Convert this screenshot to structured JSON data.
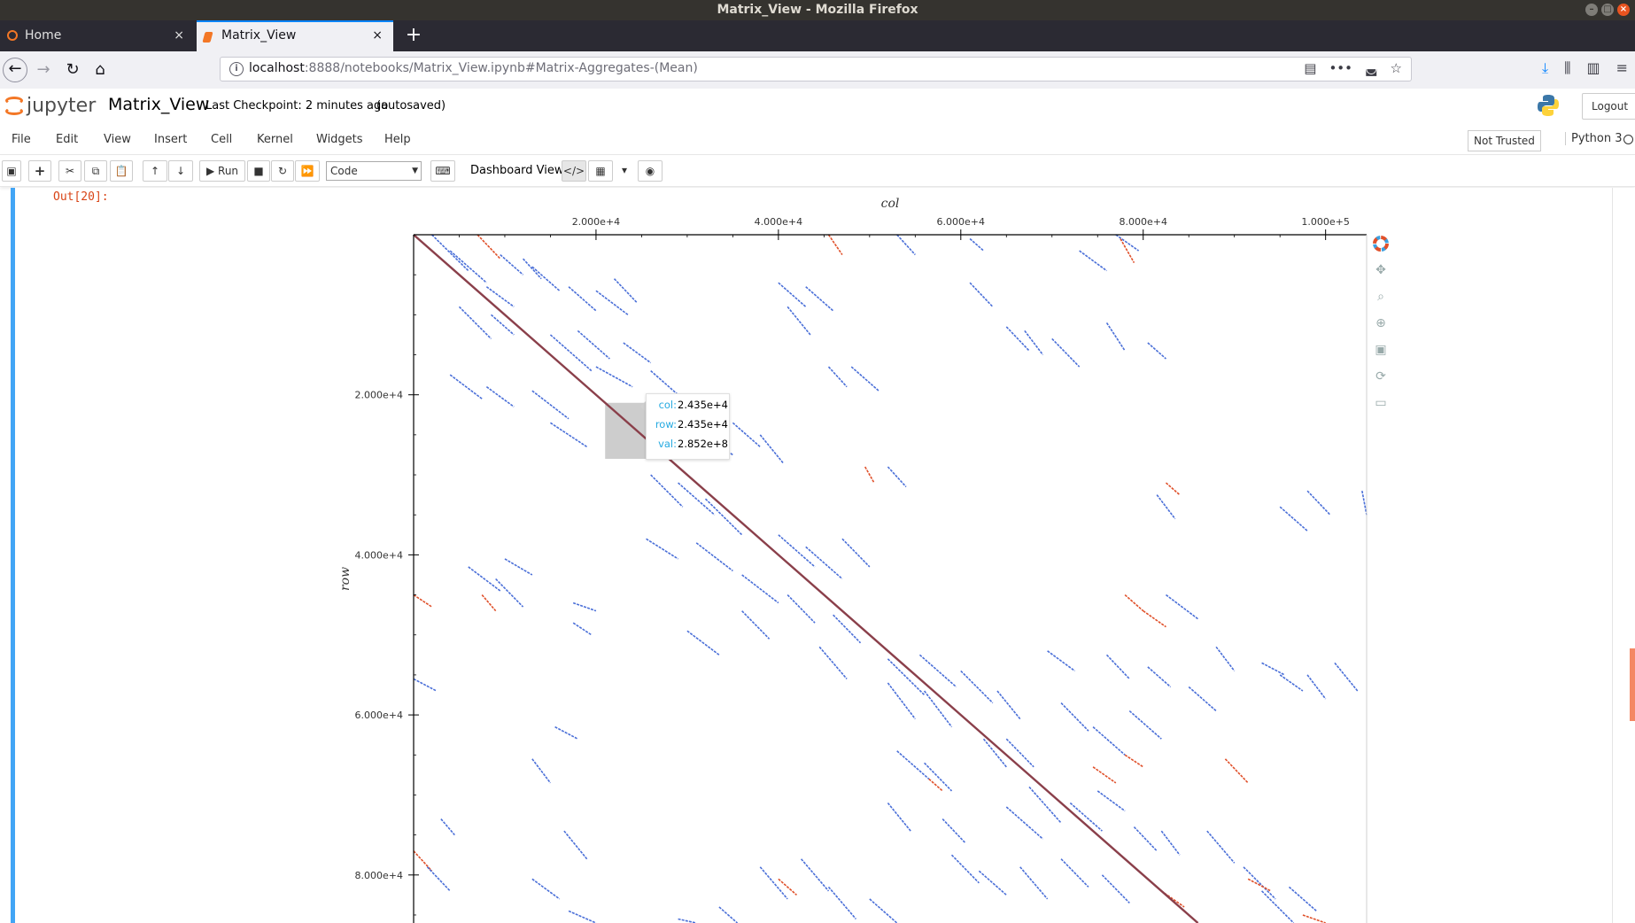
{
  "window": {
    "title": "Matrix_View - Mozilla Firefox"
  },
  "tabs": [
    {
      "label": "Home",
      "close": "×"
    },
    {
      "label": "Matrix_View",
      "close": "×"
    }
  ],
  "newtab": "+",
  "url": {
    "host": "localhost",
    "rest": ":8888/notebooks/Matrix_View.ipynb#Matrix-Aggregates-(Mean)"
  },
  "jupyter": {
    "logo_text": "jupyter",
    "notebook_name": "Matrix_View",
    "checkpoint": "Last Checkpoint: 2 minutes ago",
    "autosaved": "(autosaved)",
    "logout": "Logout"
  },
  "menu": [
    "File",
    "Edit",
    "View",
    "Insert",
    "Cell",
    "Kernel",
    "Widgets",
    "Help"
  ],
  "trust": "Not Trusted",
  "kernel": "Python 3",
  "toolbar": {
    "run_label": "Run",
    "cell_type": "Code",
    "dashboard_label": "Dashboard View:"
  },
  "output": {
    "prompt": "Out[20]:"
  },
  "tooltip": {
    "rows": [
      {
        "key": "col:",
        "val": "2.435e+4"
      },
      {
        "key": "row:",
        "val": "2.435e+4"
      },
      {
        "key": "val:",
        "val": "2.852e+8"
      }
    ]
  },
  "chart_data": {
    "type": "heatmap",
    "title": "",
    "xlabel": "col",
    "ylabel": "row",
    "x_axis_position": "top",
    "xlim": [
      0,
      104500
    ],
    "ylim": [
      0,
      86000
    ],
    "y_inverted": true,
    "x_ticks": [
      "2.000e+4",
      "4.000e+4",
      "6.000e+4",
      "8.000e+4",
      "1.000e+5"
    ],
    "x_tick_values": [
      20000,
      40000,
      60000,
      80000,
      100000
    ],
    "y_ticks": [
      "2.000e+4",
      "4.000e+4",
      "6.000e+4",
      "8.000e+4"
    ],
    "y_tick_values": [
      20000,
      40000,
      60000,
      80000
    ],
    "colors": {
      "low": "#4a6fd8",
      "high": "#e0502a",
      "diagonal": "#8a3f4a"
    },
    "hover_region": {
      "col": [
        21000,
        25500
      ],
      "row": [
        21000,
        28000
      ]
    },
    "segments": [
      [
        2000,
        0,
        6000,
        4500,
        "b"
      ],
      [
        4000,
        2000,
        8000,
        6000,
        "b"
      ],
      [
        7000,
        0,
        9500,
        3000,
        "r"
      ],
      [
        9500,
        2500,
        12000,
        5000,
        "b"
      ],
      [
        12000,
        3000,
        14000,
        5500,
        "b"
      ],
      [
        8000,
        6500,
        11000,
        9000,
        "b"
      ],
      [
        13000,
        4000,
        16000,
        7000,
        "b"
      ],
      [
        17000,
        6500,
        20000,
        9500,
        "b"
      ],
      [
        20000,
        7000,
        23500,
        10000,
        "b"
      ],
      [
        22000,
        5500,
        24500,
        8500,
        "b"
      ],
      [
        5000,
        9000,
        8500,
        13000,
        "b"
      ],
      [
        8500,
        10000,
        11000,
        12500,
        "b"
      ],
      [
        15000,
        12500,
        19500,
        17000,
        "b"
      ],
      [
        18000,
        12000,
        21500,
        15500,
        "b"
      ],
      [
        23000,
        13500,
        26000,
        16000,
        "b"
      ],
      [
        20000,
        16500,
        24000,
        19000,
        "b"
      ],
      [
        4000,
        17500,
        7500,
        20500,
        "b"
      ],
      [
        8000,
        19000,
        11000,
        21500,
        "b"
      ],
      [
        13000,
        19500,
        17000,
        23000,
        "b"
      ],
      [
        15000,
        23500,
        19000,
        26500,
        "b"
      ],
      [
        26000,
        17000,
        29000,
        20000,
        "b"
      ],
      [
        28000,
        22500,
        32000,
        26500,
        "b"
      ],
      [
        31000,
        24500,
        35000,
        27500,
        "b"
      ],
      [
        35000,
        23500,
        38000,
        26500,
        "b"
      ],
      [
        38000,
        25000,
        40500,
        28500,
        "b"
      ],
      [
        29000,
        31000,
        33000,
        35000,
        "b"
      ],
      [
        32000,
        33000,
        36000,
        37500,
        "b"
      ],
      [
        26000,
        30000,
        29500,
        34000,
        "b"
      ],
      [
        25500,
        38000,
        29000,
        40500,
        "b"
      ],
      [
        31000,
        38500,
        35000,
        42000,
        "b"
      ],
      [
        40000,
        37500,
        44000,
        41500,
        "b"
      ],
      [
        43000,
        39000,
        47000,
        43000,
        "b"
      ],
      [
        47000,
        38000,
        50000,
        41500,
        "b"
      ],
      [
        36000,
        42500,
        40000,
        46000,
        "b"
      ],
      [
        41000,
        45000,
        44000,
        48500,
        "b"
      ],
      [
        46000,
        47500,
        49000,
        51000,
        "b"
      ],
      [
        6000,
        41500,
        9500,
        44500,
        "b"
      ],
      [
        9000,
        43000,
        12000,
        46500,
        "b"
      ],
      [
        10000,
        40500,
        13000,
        42500,
        "b"
      ],
      [
        0,
        45000,
        2000,
        46500,
        "r"
      ],
      [
        7500,
        45000,
        9000,
        47000,
        "r"
      ],
      [
        17500,
        46000,
        20000,
        47000,
        "b"
      ],
      [
        17500,
        48500,
        19500,
        50000,
        "b"
      ],
      [
        30000,
        49500,
        33500,
        52500,
        "b"
      ],
      [
        36000,
        47000,
        39000,
        50500,
        "b"
      ],
      [
        44500,
        51500,
        47500,
        55500,
        "b"
      ],
      [
        52000,
        53000,
        56000,
        57500,
        "b"
      ],
      [
        55500,
        52500,
        59500,
        56500,
        "b"
      ],
      [
        52000,
        56000,
        55000,
        60500,
        "b"
      ],
      [
        56000,
        57000,
        59000,
        61500,
        "b"
      ],
      [
        60000,
        54500,
        63500,
        58500,
        "b"
      ],
      [
        64000,
        57000,
        66500,
        60500,
        "b"
      ],
      [
        69500,
        52000,
        72500,
        54500,
        "b"
      ],
      [
        76000,
        52500,
        78500,
        55500,
        "b"
      ],
      [
        80500,
        54000,
        83000,
        56500,
        "b"
      ],
      [
        85000,
        56500,
        88000,
        59500,
        "b"
      ],
      [
        88000,
        51500,
        90000,
        54500,
        "b"
      ],
      [
        82500,
        45000,
        86000,
        48000,
        "b"
      ],
      [
        78000,
        45000,
        80000,
        47000,
        "r"
      ],
      [
        80000,
        47000,
        82500,
        49000,
        "r"
      ],
      [
        93000,
        53500,
        95500,
        55000,
        "b"
      ],
      [
        95000,
        55000,
        97500,
        57000,
        "b"
      ],
      [
        98000,
        55000,
        100000,
        58000,
        "b"
      ],
      [
        101000,
        53500,
        103500,
        57000,
        "b"
      ],
      [
        71000,
        58500,
        74000,
        62000,
        "b"
      ],
      [
        74500,
        61500,
        78000,
        65000,
        "b"
      ],
      [
        78500,
        59500,
        82000,
        63000,
        "b"
      ],
      [
        65000,
        63000,
        68000,
        66500,
        "b"
      ],
      [
        53000,
        64500,
        56500,
        68000,
        "b"
      ],
      [
        56000,
        66000,
        59000,
        69500,
        "b"
      ],
      [
        62500,
        63000,
        65000,
        66500,
        "b"
      ],
      [
        78000,
        65000,
        80000,
        66500,
        "r"
      ],
      [
        74500,
        66500,
        77000,
        68500,
        "r"
      ],
      [
        89000,
        65500,
        91500,
        68500,
        "r"
      ],
      [
        56500,
        68000,
        58000,
        69500,
        "r"
      ],
      [
        65000,
        71500,
        69000,
        75500,
        "b"
      ],
      [
        67500,
        69000,
        71000,
        73500,
        "b"
      ],
      [
        72000,
        71000,
        75500,
        74500,
        "b"
      ],
      [
        75000,
        69500,
        78000,
        72000,
        "b"
      ],
      [
        79000,
        74000,
        81500,
        77000,
        "b"
      ],
      [
        82000,
        74500,
        84000,
        77500,
        "b"
      ],
      [
        87000,
        74500,
        90000,
        78500,
        "b"
      ],
      [
        91000,
        79000,
        94500,
        83000,
        "b"
      ],
      [
        93000,
        82000,
        96500,
        86000,
        "b"
      ],
      [
        58000,
        73000,
        60500,
        76000,
        "b"
      ],
      [
        52000,
        71000,
        54500,
        74500,
        "b"
      ],
      [
        59000,
        77500,
        62000,
        81000,
        "b"
      ],
      [
        62000,
        79500,
        65000,
        82500,
        "b"
      ],
      [
        66500,
        79000,
        69500,
        83000,
        "b"
      ],
      [
        71000,
        78000,
        74000,
        81500,
        "b"
      ],
      [
        75500,
        80000,
        78500,
        83500,
        "b"
      ],
      [
        42500,
        78000,
        45500,
        82000,
        "b"
      ],
      [
        38000,
        79000,
        41000,
        83000,
        "b"
      ],
      [
        45500,
        81500,
        48500,
        85500,
        "b"
      ],
      [
        50000,
        83000,
        53000,
        86000,
        "b"
      ],
      [
        16500,
        74500,
        19000,
        78000,
        "b"
      ],
      [
        0,
        77000,
        2000,
        79500,
        "r"
      ],
      [
        1500,
        79000,
        4000,
        82000,
        "b"
      ],
      [
        13000,
        80500,
        16000,
        83000,
        "b"
      ],
      [
        17000,
        84500,
        20000,
        86000,
        "b"
      ],
      [
        33500,
        84000,
        35500,
        86000,
        "b"
      ],
      [
        40000,
        80500,
        42000,
        82500,
        "r"
      ],
      [
        82000,
        82000,
        84500,
        84000,
        "r"
      ],
      [
        91500,
        80500,
        94000,
        82000,
        "r"
      ],
      [
        96000,
        81500,
        99000,
        84500,
        "b"
      ],
      [
        97500,
        85000,
        100000,
        86000,
        "r"
      ],
      [
        29000,
        85500,
        31000,
        86000,
        "b"
      ],
      [
        65000,
        11500,
        67500,
        14500,
        "b"
      ],
      [
        76000,
        11000,
        78000,
        14500,
        "b"
      ],
      [
        67000,
        12000,
        69000,
        15000,
        "b"
      ],
      [
        70000,
        13000,
        73000,
        16500,
        "b"
      ],
      [
        80500,
        13500,
        82500,
        15500,
        "b"
      ],
      [
        40000,
        6000,
        43000,
        9000,
        "b"
      ],
      [
        43000,
        6500,
        46000,
        9500,
        "b"
      ],
      [
        41000,
        9000,
        43500,
        12500,
        "b"
      ],
      [
        48000,
        16500,
        51000,
        19500,
        "b"
      ],
      [
        45500,
        16500,
        47500,
        19000,
        "b"
      ],
      [
        61000,
        6000,
        63500,
        9000,
        "b"
      ],
      [
        73000,
        2000,
        76000,
        4500,
        "b"
      ],
      [
        77500,
        500,
        79000,
        3500,
        "r"
      ],
      [
        77000,
        0,
        79500,
        2000,
        "b"
      ],
      [
        45500,
        0,
        47000,
        2500,
        "r"
      ],
      [
        53000,
        0,
        55000,
        2500,
        "b"
      ],
      [
        61000,
        500,
        62500,
        2000,
        "b"
      ],
      [
        81500,
        32500,
        83500,
        35500,
        "b"
      ],
      [
        82500,
        31000,
        84000,
        32500,
        "r"
      ],
      [
        52000,
        29000,
        54000,
        31500,
        "b"
      ],
      [
        49500,
        29000,
        50500,
        31000,
        "r"
      ],
      [
        95000,
        34000,
        98000,
        37000,
        "b"
      ],
      [
        98000,
        32000,
        100500,
        35000,
        "b"
      ],
      [
        104000,
        32000,
        104500,
        35000,
        "b"
      ],
      [
        0,
        55500,
        2500,
        57000,
        "b"
      ],
      [
        15500,
        61500,
        18000,
        63000,
        "b"
      ],
      [
        13000,
        65500,
        15000,
        68500,
        "b"
      ],
      [
        3000,
        73000,
        4500,
        75000,
        "b"
      ]
    ]
  }
}
